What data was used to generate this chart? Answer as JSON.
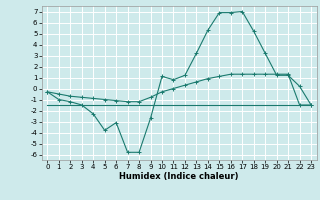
{
  "title": "",
  "xlabel": "Humidex (Indice chaleur)",
  "background_color": "#ceeaeb",
  "grid_color": "#ffffff",
  "line_color": "#1a7a6e",
  "xlim": [
    -0.5,
    23.5
  ],
  "ylim": [
    -6.5,
    7.5
  ],
  "xticks": [
    0,
    1,
    2,
    3,
    4,
    5,
    6,
    7,
    8,
    9,
    10,
    11,
    12,
    13,
    14,
    15,
    16,
    17,
    18,
    19,
    20,
    21,
    22,
    23
  ],
  "yticks": [
    -6,
    -5,
    -4,
    -3,
    -2,
    -1,
    0,
    1,
    2,
    3,
    4,
    5,
    6,
    7
  ],
  "series_main": {
    "x": [
      0,
      1,
      2,
      3,
      4,
      5,
      6,
      7,
      8,
      9,
      10,
      11,
      12,
      13,
      14,
      15,
      16,
      17,
      18,
      19,
      20,
      21,
      22,
      23
    ],
    "y": [
      -0.3,
      -1.0,
      -1.2,
      -1.5,
      -2.3,
      -3.8,
      -3.1,
      -5.8,
      -5.8,
      -2.7,
      1.1,
      0.8,
      1.2,
      3.2,
      5.3,
      6.9,
      6.9,
      7.0,
      5.2,
      3.2,
      1.2,
      1.2,
      0.2,
      -1.5
    ]
  },
  "series_trend": {
    "x": [
      0,
      1,
      2,
      3,
      4,
      5,
      6,
      7,
      8,
      9,
      10,
      11,
      12,
      13,
      14,
      15,
      16,
      17,
      18,
      19,
      20,
      21,
      22,
      23
    ],
    "y": [
      -0.3,
      -0.5,
      -0.7,
      -0.8,
      -0.9,
      -1.0,
      -1.1,
      -1.2,
      -1.2,
      -0.8,
      -0.3,
      0.0,
      0.3,
      0.6,
      0.9,
      1.1,
      1.3,
      1.3,
      1.3,
      1.3,
      1.3,
      1.3,
      -1.5,
      -1.5
    ]
  },
  "series_flat": {
    "x": [
      0,
      16,
      23
    ],
    "y": [
      -1.5,
      -1.5,
      -1.5
    ]
  }
}
